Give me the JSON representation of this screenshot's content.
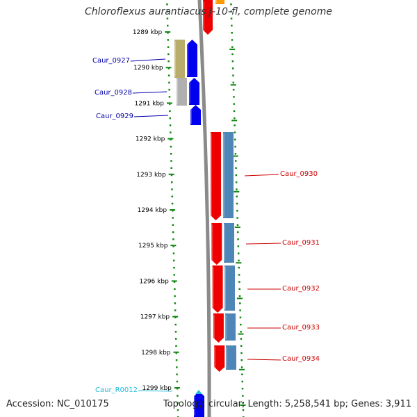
{
  "title": "Chloroflexus aurantiacus J-10-fl, complete genome",
  "footer": {
    "accession": "Accession: NC_010175",
    "summary": "Topology: circular; Length: 5,258,541 bp; Genes: 3,911"
  },
  "ticks": [
    {
      "kb": 1289,
      "label": "1289 kbp"
    },
    {
      "kb": 1290,
      "label": "1290 kbp"
    },
    {
      "kb": 1291,
      "label": "1291 kbp"
    },
    {
      "kb": 1292,
      "label": "1292 kbp"
    },
    {
      "kb": 1293,
      "label": "1293 kbp"
    },
    {
      "kb": 1294,
      "label": "1294 kbp"
    },
    {
      "kb": 1295,
      "label": "1295 kbp"
    },
    {
      "kb": 1296,
      "label": "1296 kbp"
    },
    {
      "kb": 1297,
      "label": "1297 kbp"
    },
    {
      "kb": 1298,
      "label": "1298 kbp"
    },
    {
      "kb": 1299,
      "label": "1299 kbp"
    }
  ],
  "gene_labels": [
    {
      "name": "Caur_0927",
      "strand": "minus",
      "color": "#0000aa"
    },
    {
      "name": "Caur_0928",
      "strand": "minus",
      "color": "#0000aa"
    },
    {
      "name": "Caur_0929",
      "strand": "minus",
      "color": "#0000aa"
    },
    {
      "name": "Caur_0930",
      "strand": "plus",
      "color": "#cc0000"
    },
    {
      "name": "Caur_0931",
      "strand": "plus",
      "color": "#cc0000"
    },
    {
      "name": "Caur_0932",
      "strand": "plus",
      "color": "#cc0000"
    },
    {
      "name": "Caur_0933",
      "strand": "plus",
      "color": "#cc0000"
    },
    {
      "name": "Caur_0934",
      "strand": "plus",
      "color": "#cc0000"
    },
    {
      "name": "Caur_R0012",
      "strand": "minus",
      "color": "#22bbdd"
    }
  ],
  "colors": {
    "minus_cds": "#0000ee",
    "plus_cds": "#ee0000",
    "cog_steel": "#4f86b8",
    "cog_olive": "#b8ad6a",
    "cog_grey": "#b0b0b0",
    "backbone": "#8a8a8a",
    "ticks": "#118811",
    "orange": "#ff9900"
  }
}
